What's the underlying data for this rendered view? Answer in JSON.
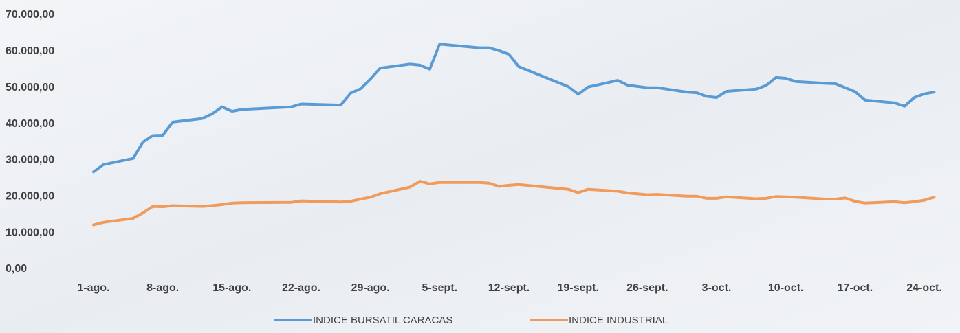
{
  "chart_data": {
    "type": "line",
    "x": [
      0,
      1,
      4,
      5,
      6,
      7,
      8,
      11,
      12,
      13,
      14,
      15,
      20,
      21,
      25,
      26,
      27,
      28,
      29,
      32,
      33,
      34,
      35,
      39,
      40,
      41,
      42,
      43,
      48,
      49,
      50,
      53,
      54,
      56,
      57,
      60,
      61,
      62,
      63,
      64,
      67,
      68,
      69,
      70,
      71,
      74,
      75,
      76,
      77,
      78,
      81,
      82,
      83,
      84,
      85
    ],
    "series": [
      {
        "name": "INDICE BURSATIL CARACAS",
        "color": "#5b9bd5",
        "values": [
          26800,
          28800,
          30500,
          35000,
          36800,
          36900,
          40500,
          41500,
          42800,
          44700,
          43500,
          44000,
          44700,
          45500,
          45200,
          48500,
          49700,
          52400,
          55400,
          56500,
          56200,
          55100,
          62000,
          61000,
          61000,
          60200,
          59200,
          55800,
          50300,
          48200,
          50200,
          52000,
          50700,
          50000,
          50000,
          48800,
          48600,
          47600,
          47300,
          49000,
          49600,
          50600,
          52800,
          52600,
          51700,
          51200,
          51100,
          50000,
          48900,
          46600,
          45800,
          44900,
          47300,
          48300,
          48800
        ]
      },
      {
        "name": "INDICE INDUSTRIAL",
        "color": "#f19a5a",
        "values": [
          12200,
          12900,
          14000,
          15500,
          17300,
          17200,
          17500,
          17300,
          17500,
          17800,
          18200,
          18300,
          18400,
          18800,
          18500,
          18700,
          19300,
          19800,
          20800,
          22600,
          24200,
          23500,
          23900,
          23900,
          23700,
          22800,
          23100,
          23300,
          22000,
          21100,
          22000,
          21500,
          21000,
          20500,
          20600,
          20100,
          20100,
          19500,
          19500,
          19900,
          19400,
          19500,
          20000,
          19900,
          19800,
          19300,
          19300,
          19600,
          18700,
          18200,
          18600,
          18300,
          18600,
          19000,
          19800
        ]
      }
    ],
    "xlim": [
      -2.5,
      86.5
    ],
    "xticks": [
      {
        "value": 0,
        "label": "1-ago."
      },
      {
        "value": 7,
        "label": "8-ago."
      },
      {
        "value": 14,
        "label": "15-ago."
      },
      {
        "value": 21,
        "label": "22-ago."
      },
      {
        "value": 28,
        "label": "29-ago."
      },
      {
        "value": 35,
        "label": "5-sept."
      },
      {
        "value": 42,
        "label": "12-sept."
      },
      {
        "value": 49,
        "label": "19-sept."
      },
      {
        "value": 56,
        "label": "26-sept."
      },
      {
        "value": 63,
        "label": "3-oct."
      },
      {
        "value": 70,
        "label": "10-oct."
      },
      {
        "value": 77,
        "label": "17-oct."
      },
      {
        "value": 84,
        "label": "24-oct."
      }
    ],
    "ylim": [
      0,
      70000
    ],
    "yticks": [
      {
        "value": 0,
        "label": "0,00"
      },
      {
        "value": 10000,
        "label": "10.000,00"
      },
      {
        "value": 20000,
        "label": "20.000,00"
      },
      {
        "value": 30000,
        "label": "30.000,00"
      },
      {
        "value": 40000,
        "label": "40.000,00"
      },
      {
        "value": 50000,
        "label": "50.000,00"
      },
      {
        "value": 60000,
        "label": "60.000,00"
      },
      {
        "value": 70000,
        "label": "70.000,00"
      }
    ],
    "grid": false,
    "legend": "bottom"
  }
}
